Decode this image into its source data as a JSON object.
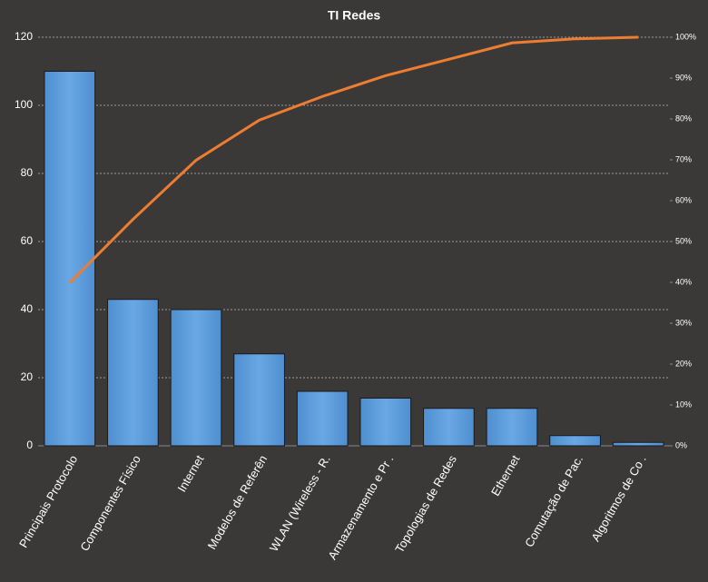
{
  "chart_data": {
    "type": "pareto",
    "title": "TI Redes",
    "categories": [
      "Principais Protocolo",
      "Componentes Físico",
      "Internet",
      "Modelos de Referên",
      "WLAN (Wireless - R.",
      "Armazenamento e Pr .",
      "Topologias de Redes",
      "Ethernet",
      "Comutação de Pac.",
      "Algoritmos de Co ."
    ],
    "series": [
      {
        "type": "bar",
        "color": "#5b9bd5",
        "values": [
          110,
          43,
          40,
          27,
          16,
          14,
          11,
          11,
          3,
          1
        ]
      },
      {
        "type": "line",
        "axis": "y2",
        "color": "#ed7d31",
        "values": [
          39.9,
          55.4,
          69.9,
          79.7,
          85.5,
          90.6,
          94.6,
          98.6,
          99.6,
          100
        ]
      }
    ],
    "ylim": [
      0,
      120
    ],
    "yticks": [
      0,
      20,
      40,
      60,
      80,
      100,
      120
    ],
    "y2lim": [
      0,
      100
    ],
    "y2ticks": [
      {
        "value": 0,
        "label": "0%"
      },
      {
        "value": 10,
        "label": "10%"
      },
      {
        "value": 20,
        "label": "20%"
      },
      {
        "value": 30,
        "label": "30%"
      },
      {
        "value": 40,
        "label": "40%"
      },
      {
        "value": 50,
        "label": "50%"
      },
      {
        "value": 60,
        "label": "60%"
      },
      {
        "value": 70,
        "label": "70%"
      },
      {
        "value": 80,
        "label": "80%"
      },
      {
        "value": 90,
        "label": "90%"
      },
      {
        "value": 100,
        "label": "100%"
      }
    ],
    "grid": true
  }
}
